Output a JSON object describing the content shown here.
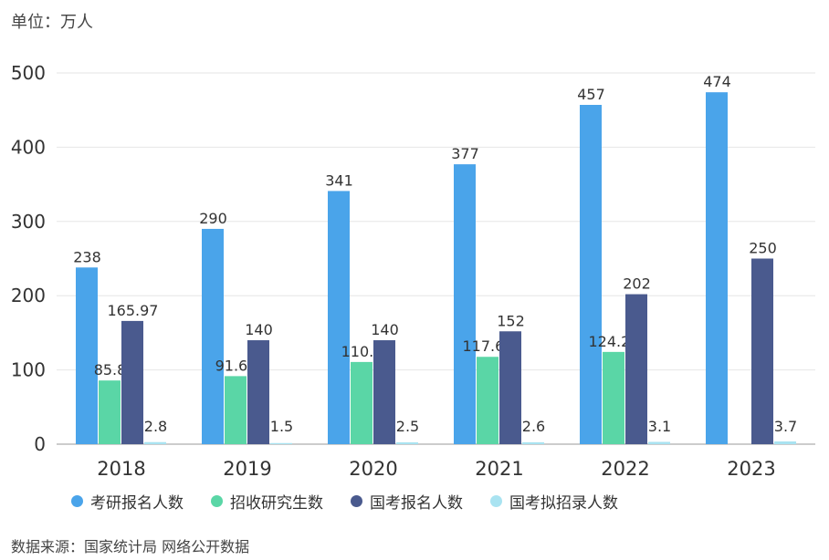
{
  "unit_label": "单位：万人",
  "source_label": "数据来源：国家统计局 网络公开数据",
  "chart_data": {
    "type": "bar",
    "categories": [
      "2018",
      "2019",
      "2020",
      "2021",
      "2022",
      "2023"
    ],
    "ylim": [
      0,
      500
    ],
    "yticks": [
      0,
      100,
      200,
      300,
      400,
      500
    ],
    "grid": true,
    "legend_position": "bottom",
    "series": [
      {
        "name": "考研报名人数",
        "color": "#4aa4ea",
        "values": [
          238,
          290,
          341,
          377,
          457,
          474
        ],
        "labels": [
          "238",
          "290",
          "341",
          "377",
          "457",
          "474"
        ]
      },
      {
        "name": "招收研究生数",
        "color": "#5ad6a6",
        "values": [
          85.8,
          91.65,
          110.7,
          117.65,
          124.25,
          null
        ],
        "labels": [
          "85.8",
          "91.65",
          "110.7",
          "117.65",
          "124.25",
          null
        ]
      },
      {
        "name": "国考报名人数",
        "color": "#4a5a8e",
        "values": [
          165.97,
          140,
          140,
          152,
          202,
          250
        ],
        "labels": [
          "165.97",
          "140",
          "140",
          "152",
          "202",
          "250"
        ]
      },
      {
        "name": "国考拟招录人数",
        "color": "#a9e3f1",
        "values": [
          2.8,
          1.5,
          2.5,
          2.6,
          3.1,
          3.7
        ],
        "labels": [
          "2.8",
          "1.5",
          "2.5",
          "2.6",
          "3.1",
          "3.7"
        ]
      }
    ]
  }
}
